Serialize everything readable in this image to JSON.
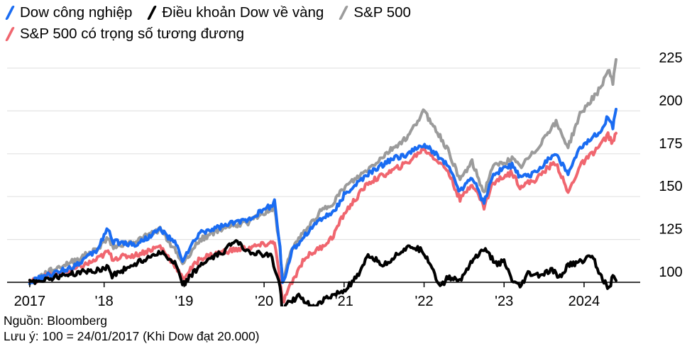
{
  "legend": [
    {
      "label": "Dow công nghiệp",
      "color": "#1a6cf2"
    },
    {
      "label": "Điều khoản Dow về vàng",
      "color": "#000000"
    },
    {
      "label": "S&P 500",
      "color": "#9b9b9b"
    },
    {
      "label": "S&P 500 có trọng số tương đương",
      "color": "#f0666f"
    }
  ],
  "footer": {
    "source": "Nguồn: Bloomberg",
    "note": "Lưu ý: 100 = 24/01/2017 (Khi Dow đạt 20.000)"
  },
  "chart_data": {
    "type": "line",
    "x_ticks": [
      "2017",
      "'18",
      "'19",
      "'20",
      "'21",
      "'22",
      "'23",
      "2024"
    ],
    "y_ticks": [
      100,
      125,
      150,
      175,
      200,
      225
    ],
    "ylim": [
      91,
      232
    ],
    "xlim": [
      2017.0,
      2024.5
    ],
    "grid": true,
    "legend_position": "top-left",
    "series": [
      {
        "name": "S&P 500",
        "color": "#9b9b9b",
        "points": [
          [
            2017.07,
            100
          ],
          [
            2017.3,
            106
          ],
          [
            2017.6,
            112
          ],
          [
            2017.9,
            119
          ],
          [
            2018.05,
            126
          ],
          [
            2018.1,
            121
          ],
          [
            2018.4,
            124
          ],
          [
            2018.7,
            131
          ],
          [
            2018.9,
            118
          ],
          [
            2018.98,
            111
          ],
          [
            2019.2,
            125
          ],
          [
            2019.5,
            132
          ],
          [
            2019.8,
            135
          ],
          [
            2020.1,
            143
          ],
          [
            2020.13,
            144
          ],
          [
            2020.2,
            118
          ],
          [
            2020.23,
            101
          ],
          [
            2020.35,
            120
          ],
          [
            2020.5,
            129
          ],
          [
            2020.7,
            141
          ],
          [
            2020.85,
            146
          ],
          [
            2021.0,
            155
          ],
          [
            2021.3,
            166
          ],
          [
            2021.6,
            178
          ],
          [
            2021.8,
            185
          ],
          [
            2021.99,
            200
          ],
          [
            2022.1,
            193
          ],
          [
            2022.3,
            177
          ],
          [
            2022.45,
            160
          ],
          [
            2022.6,
            170
          ],
          [
            2022.75,
            152
          ],
          [
            2022.85,
            167
          ],
          [
            2023.0,
            170
          ],
          [
            2023.1,
            172
          ],
          [
            2023.2,
            167
          ],
          [
            2023.4,
            177
          ],
          [
            2023.55,
            188
          ],
          [
            2023.65,
            193
          ],
          [
            2023.8,
            179
          ],
          [
            2023.95,
            198
          ],
          [
            2024.1,
            207
          ],
          [
            2024.2,
            213
          ],
          [
            2024.3,
            224
          ],
          [
            2024.36,
            217
          ],
          [
            2024.4,
            230
          ]
        ]
      },
      {
        "name": "S&P 500 có trọng số tương đương",
        "color": "#f0666f",
        "points": [
          [
            2017.07,
            100
          ],
          [
            2017.3,
            104
          ],
          [
            2017.6,
            107
          ],
          [
            2017.9,
            113
          ],
          [
            2018.05,
            118
          ],
          [
            2018.1,
            114
          ],
          [
            2018.4,
            116
          ],
          [
            2018.7,
            121
          ],
          [
            2018.9,
            109
          ],
          [
            2018.98,
            102
          ],
          [
            2019.2,
            114
          ],
          [
            2019.5,
            118
          ],
          [
            2019.8,
            120
          ],
          [
            2020.1,
            123
          ],
          [
            2020.13,
            124
          ],
          [
            2020.2,
            100
          ],
          [
            2020.23,
            88
          ],
          [
            2020.35,
            100
          ],
          [
            2020.5,
            114
          ],
          [
            2020.7,
            120
          ],
          [
            2020.85,
            126
          ],
          [
            2021.0,
            140
          ],
          [
            2021.3,
            158
          ],
          [
            2021.6,
            165
          ],
          [
            2021.8,
            170
          ],
          [
            2021.99,
            178
          ],
          [
            2022.1,
            174
          ],
          [
            2022.3,
            165
          ],
          [
            2022.45,
            148
          ],
          [
            2022.6,
            158
          ],
          [
            2022.75,
            144
          ],
          [
            2022.85,
            157
          ],
          [
            2023.0,
            162
          ],
          [
            2023.1,
            164
          ],
          [
            2023.2,
            156
          ],
          [
            2023.4,
            160
          ],
          [
            2023.55,
            167
          ],
          [
            2023.65,
            170
          ],
          [
            2023.8,
            152
          ],
          [
            2023.95,
            168
          ],
          [
            2024.1,
            175
          ],
          [
            2024.2,
            180
          ],
          [
            2024.3,
            186
          ],
          [
            2024.36,
            181
          ],
          [
            2024.4,
            187
          ]
        ]
      },
      {
        "name": "Dow công nghiệp",
        "color": "#1a6cf2",
        "points": [
          [
            2017.07,
            100
          ],
          [
            2017.3,
            104
          ],
          [
            2017.6,
            109
          ],
          [
            2017.9,
            118
          ],
          [
            2018.05,
            132
          ],
          [
            2018.1,
            124
          ],
          [
            2018.4,
            122
          ],
          [
            2018.7,
            131
          ],
          [
            2018.9,
            122
          ],
          [
            2018.98,
            113
          ],
          [
            2019.2,
            129
          ],
          [
            2019.5,
            133
          ],
          [
            2019.8,
            137
          ],
          [
            2020.1,
            145
          ],
          [
            2020.13,
            147
          ],
          [
            2020.2,
            120
          ],
          [
            2020.23,
            99
          ],
          [
            2020.35,
            118
          ],
          [
            2020.5,
            127
          ],
          [
            2020.7,
            137
          ],
          [
            2020.85,
            140
          ],
          [
            2021.0,
            151
          ],
          [
            2021.3,
            163
          ],
          [
            2021.6,
            172
          ],
          [
            2021.8,
            175
          ],
          [
            2021.99,
            180
          ],
          [
            2022.1,
            177
          ],
          [
            2022.3,
            168
          ],
          [
            2022.45,
            153
          ],
          [
            2022.6,
            162
          ],
          [
            2022.75,
            146
          ],
          [
            2022.85,
            162
          ],
          [
            2023.0,
            167
          ],
          [
            2023.1,
            168
          ],
          [
            2023.2,
            161
          ],
          [
            2023.4,
            164
          ],
          [
            2023.55,
            172
          ],
          [
            2023.65,
            175
          ],
          [
            2023.8,
            163
          ],
          [
            2023.95,
            178
          ],
          [
            2024.1,
            184
          ],
          [
            2024.2,
            188
          ],
          [
            2024.3,
            197
          ],
          [
            2024.36,
            190
          ],
          [
            2024.4,
            201
          ]
        ]
      },
      {
        "name": "Điều khoản Dow về vàng",
        "color": "#000000",
        "points": [
          [
            2017.07,
            100
          ],
          [
            2017.3,
            102
          ],
          [
            2017.6,
            105
          ],
          [
            2017.9,
            107
          ],
          [
            2018.05,
            109
          ],
          [
            2018.1,
            104
          ],
          [
            2018.4,
            111
          ],
          [
            2018.7,
            118
          ],
          [
            2018.9,
            110
          ],
          [
            2018.98,
            98
          ],
          [
            2019.2,
            110
          ],
          [
            2019.5,
            118
          ],
          [
            2019.65,
            125
          ],
          [
            2019.8,
            118
          ],
          [
            2020.1,
            115
          ],
          [
            2020.13,
            107
          ],
          [
            2020.2,
            98
          ],
          [
            2020.23,
            83
          ],
          [
            2020.3,
            88
          ],
          [
            2020.45,
            92
          ],
          [
            2020.6,
            85
          ],
          [
            2020.75,
            90
          ],
          [
            2020.9,
            93
          ],
          [
            2021.0,
            95
          ],
          [
            2021.2,
            105
          ],
          [
            2021.3,
            116
          ],
          [
            2021.5,
            110
          ],
          [
            2021.7,
            118
          ],
          [
            2021.85,
            121
          ],
          [
            2021.99,
            118
          ],
          [
            2022.1,
            109
          ],
          [
            2022.2,
            97
          ],
          [
            2022.3,
            103
          ],
          [
            2022.45,
            101
          ],
          [
            2022.6,
            113
          ],
          [
            2022.75,
            119
          ],
          [
            2022.9,
            111
          ],
          [
            2023.0,
            112
          ],
          [
            2023.1,
            101
          ],
          [
            2023.2,
            97
          ],
          [
            2023.3,
            105
          ],
          [
            2023.45,
            104
          ],
          [
            2023.6,
            107
          ],
          [
            2023.7,
            103
          ],
          [
            2023.8,
            110
          ],
          [
            2023.95,
            112
          ],
          [
            2024.1,
            116
          ],
          [
            2024.2,
            105
          ],
          [
            2024.28,
            98
          ],
          [
            2024.32,
            96
          ],
          [
            2024.36,
            104
          ],
          [
            2024.4,
            101
          ]
        ]
      }
    ]
  }
}
